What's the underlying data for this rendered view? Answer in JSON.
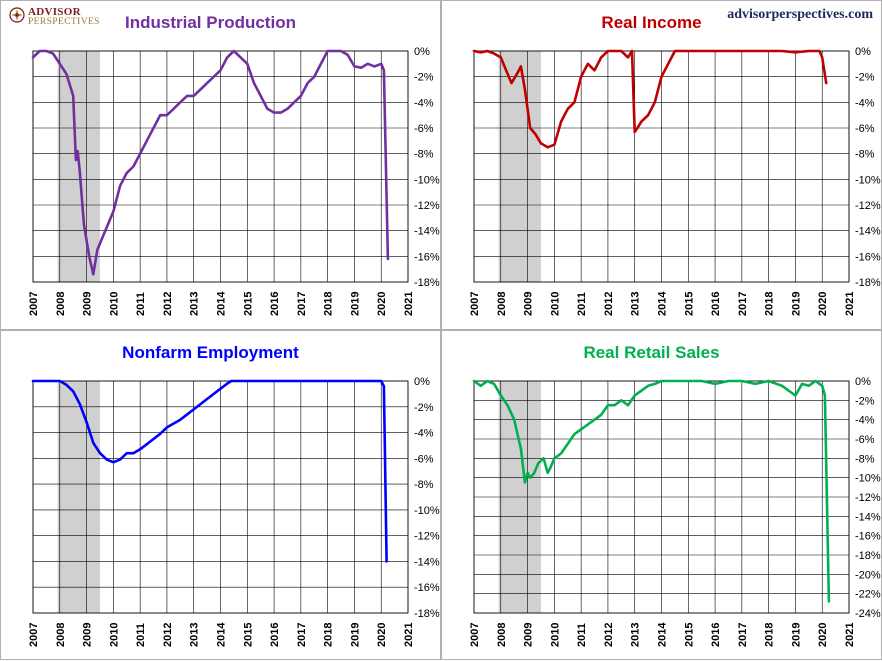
{
  "brand": {
    "logo_line1": "ADVISOR",
    "logo_line2": "PERSPECTIVES",
    "website": "advisorperspectives.com"
  },
  "chart_data": [
    {
      "type": "line",
      "title": "Industrial Production",
      "color": "#7030a0",
      "xlim": [
        2007,
        2021
      ],
      "ylim": [
        -18,
        0
      ],
      "ytick_step": 2,
      "x_ticks": [
        2007,
        2008,
        2009,
        2010,
        2011,
        2012,
        2013,
        2014,
        2015,
        2016,
        2017,
        2018,
        2019,
        2020,
        2021
      ],
      "recession": [
        2007.92,
        2009.5
      ],
      "grid": true,
      "x": [
        2007.0,
        2007.25,
        2007.5,
        2007.75,
        2008.0,
        2008.25,
        2008.5,
        2008.6,
        2008.67,
        2008.75,
        2008.9,
        2009.1,
        2009.25,
        2009.4,
        2009.6,
        2009.8,
        2010.0,
        2010.25,
        2010.5,
        2010.75,
        2011.0,
        2011.25,
        2011.5,
        2011.75,
        2012.0,
        2012.25,
        2012.5,
        2012.75,
        2013.0,
        2013.25,
        2013.5,
        2013.75,
        2014.0,
        2014.25,
        2014.5,
        2014.75,
        2015.0,
        2015.25,
        2015.5,
        2015.75,
        2016.0,
        2016.25,
        2016.5,
        2016.75,
        2017.0,
        2017.25,
        2017.5,
        2017.75,
        2018.0,
        2018.25,
        2018.5,
        2018.75,
        2019.0,
        2019.25,
        2019.5,
        2019.75,
        2020.0,
        2020.1,
        2020.25
      ],
      "y": [
        -0.5,
        0,
        0,
        -0.2,
        -1.0,
        -1.8,
        -3.5,
        -8.5,
        -7.8,
        -9.5,
        -13.5,
        -16.0,
        -17.4,
        -15.5,
        -14.5,
        -13.5,
        -12.5,
        -10.5,
        -9.5,
        -9.0,
        -8.0,
        -7.0,
        -6.0,
        -5.0,
        -5.0,
        -4.5,
        -4.0,
        -3.5,
        -3.5,
        -3.0,
        -2.5,
        -2.0,
        -1.5,
        -0.5,
        0,
        -0.5,
        -1.0,
        -2.5,
        -3.5,
        -4.5,
        -4.8,
        -4.8,
        -4.5,
        -4.0,
        -3.5,
        -2.5,
        -2.0,
        -1.0,
        0,
        0,
        0,
        -0.3,
        -1.2,
        -1.3,
        -1.0,
        -1.2,
        -1.0,
        -1.5,
        -16.2
      ]
    },
    {
      "type": "line",
      "title": "Real Income",
      "color": "#c00000",
      "xlim": [
        2007,
        2021
      ],
      "ylim": [
        -18,
        0
      ],
      "ytick_step": 2,
      "x_ticks": [
        2007,
        2008,
        2009,
        2010,
        2011,
        2012,
        2013,
        2014,
        2015,
        2016,
        2017,
        2018,
        2019,
        2020,
        2021
      ],
      "recession": [
        2007.92,
        2009.5
      ],
      "grid": true,
      "x": [
        2007.0,
        2007.25,
        2007.5,
        2007.75,
        2008.0,
        2008.2,
        2008.4,
        2008.6,
        2008.75,
        2008.9,
        2009.1,
        2009.3,
        2009.5,
        2009.75,
        2010.0,
        2010.25,
        2010.5,
        2010.75,
        2011.0,
        2011.25,
        2011.5,
        2011.75,
        2012.0,
        2012.25,
        2012.5,
        2012.75,
        2012.9,
        2013.0,
        2013.1,
        2013.25,
        2013.5,
        2013.75,
        2014.0,
        2014.25,
        2014.5,
        2014.75,
        2015.0,
        2015.5,
        2016.0,
        2016.5,
        2017.0,
        2017.5,
        2018.0,
        2018.5,
        2019.0,
        2019.5,
        2019.9,
        2020.0,
        2020.15
      ],
      "y": [
        0,
        -0.1,
        0,
        -0.2,
        -0.5,
        -1.5,
        -2.5,
        -1.8,
        -1.2,
        -3.0,
        -6.0,
        -6.5,
        -7.2,
        -7.5,
        -7.3,
        -5.5,
        -4.5,
        -4.0,
        -2.0,
        -1.0,
        -1.5,
        -0.5,
        0,
        0,
        0,
        -0.5,
        0,
        -6.3,
        -6.0,
        -5.5,
        -5.0,
        -4.0,
        -2.0,
        -1.0,
        0,
        0,
        0,
        0,
        0,
        0,
        0,
        0,
        0,
        0,
        -0.1,
        0,
        0,
        -0.5,
        -2.5
      ]
    },
    {
      "type": "line",
      "title": "Nonfarm Employment",
      "color": "#0000ff",
      "xlim": [
        2007,
        2021
      ],
      "ylim": [
        -18,
        0
      ],
      "ytick_step": 2,
      "x_ticks": [
        2007,
        2008,
        2009,
        2010,
        2011,
        2012,
        2013,
        2014,
        2015,
        2016,
        2017,
        2018,
        2019,
        2020,
        2021
      ],
      "recession": [
        2007.92,
        2009.5
      ],
      "grid": true,
      "x": [
        2007.0,
        2007.5,
        2008.0,
        2008.25,
        2008.5,
        2008.75,
        2009.0,
        2009.25,
        2009.5,
        2009.75,
        2010.0,
        2010.25,
        2010.5,
        2010.75,
        2011.0,
        2011.25,
        2011.5,
        2011.75,
        2012.0,
        2012.5,
        2013.0,
        2013.5,
        2014.0,
        2014.25,
        2014.4,
        2015.0,
        2016.0,
        2017.0,
        2018.0,
        2019.0,
        2020.0,
        2020.1,
        2020.2
      ],
      "y": [
        0,
        0,
        0,
        -0.3,
        -0.8,
        -1.8,
        -3.2,
        -4.8,
        -5.6,
        -6.1,
        -6.3,
        -6.1,
        -5.6,
        -5.6,
        -5.3,
        -4.9,
        -4.5,
        -4.1,
        -3.6,
        -3.0,
        -2.2,
        -1.4,
        -0.6,
        -0.2,
        0,
        0,
        0,
        0,
        0,
        0,
        0,
        -0.4,
        -14.0
      ]
    },
    {
      "type": "line",
      "title": "Real Retail Sales",
      "color": "#00b050",
      "xlim": [
        2007,
        2021
      ],
      "ylim": [
        -24,
        0
      ],
      "ytick_step": 2,
      "x_ticks": [
        2007,
        2008,
        2009,
        2010,
        2011,
        2012,
        2013,
        2014,
        2015,
        2016,
        2017,
        2018,
        2019,
        2020,
        2021
      ],
      "recession": [
        2007.92,
        2009.5
      ],
      "grid": true,
      "x": [
        2007.0,
        2007.25,
        2007.5,
        2007.75,
        2008.0,
        2008.25,
        2008.5,
        2008.75,
        2008.9,
        2009.0,
        2009.1,
        2009.25,
        2009.4,
        2009.6,
        2009.75,
        2009.85,
        2010.0,
        2010.25,
        2010.5,
        2010.75,
        2011.0,
        2011.25,
        2011.5,
        2011.75,
        2012.0,
        2012.25,
        2012.5,
        2012.75,
        2013.0,
        2013.25,
        2013.5,
        2013.75,
        2014.0,
        2014.5,
        2015.0,
        2015.5,
        2016.0,
        2016.5,
        2017.0,
        2017.5,
        2018.0,
        2018.5,
        2019.0,
        2019.25,
        2019.5,
        2019.75,
        2020.0,
        2020.1,
        2020.25
      ],
      "y": [
        0,
        -0.5,
        0,
        -0.3,
        -1.5,
        -2.5,
        -4.0,
        -7.0,
        -10.5,
        -9.5,
        -10.0,
        -9.5,
        -8.5,
        -8.0,
        -9.5,
        -9.0,
        -8.0,
        -7.5,
        -6.5,
        -5.5,
        -5.0,
        -4.5,
        -4.0,
        -3.5,
        -2.5,
        -2.5,
        -2.0,
        -2.5,
        -1.5,
        -1.0,
        -0.5,
        -0.3,
        0,
        0,
        0,
        0,
        -0.3,
        0,
        0,
        -0.3,
        0,
        -0.5,
        -1.5,
        -0.3,
        -0.5,
        0,
        -0.5,
        -1.5,
        -22.8
      ]
    }
  ]
}
